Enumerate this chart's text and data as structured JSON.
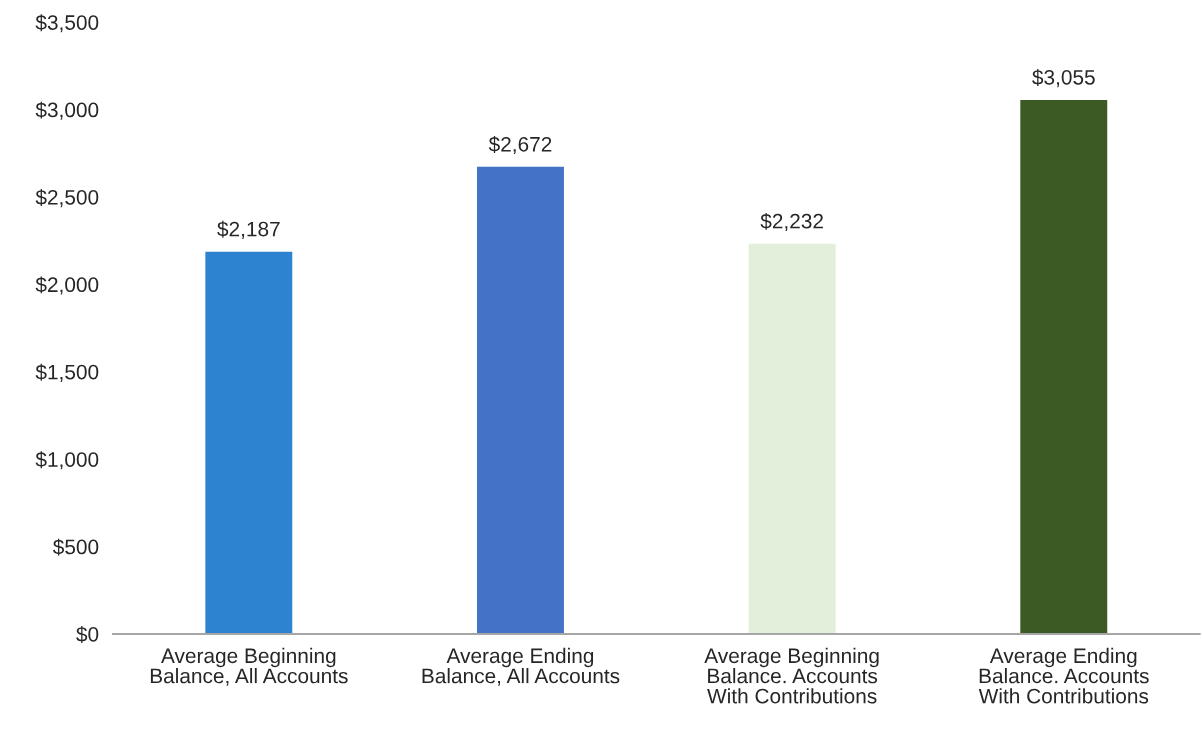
{
  "chart_data": {
    "type": "bar",
    "categories": [
      "Average Beginning\nBalance, All Accounts",
      "Average Ending\nBalance, All Accounts",
      "Average Beginning\nBalance. Accounts\nWith Contributions",
      "Average Ending\nBalance. Accounts\nWith Contributions"
    ],
    "values": [
      2187,
      2672,
      2232,
      3055
    ],
    "colors": [
      "#2e83d0",
      "#4472c4",
      "#e2efda",
      "#3b5a24"
    ],
    "ylim": [
      0,
      3500
    ],
    "yticks": [
      {
        "value": 0,
        "label": "$0"
      },
      {
        "value": 500,
        "label": "$500"
      },
      {
        "value": 1000,
        "label": "$1,000"
      },
      {
        "value": 1500,
        "label": "$1,500"
      },
      {
        "value": 2000,
        "label": "$2,000"
      },
      {
        "value": 2500,
        "label": "$2,500"
      },
      {
        "value": 3000,
        "label": "$3,000"
      },
      {
        "value": 3500,
        "label": "$3,500"
      }
    ],
    "value_labels": [
      "$2,187",
      "$2,672",
      "$2,232",
      "$3,055"
    ],
    "grid": false
  }
}
